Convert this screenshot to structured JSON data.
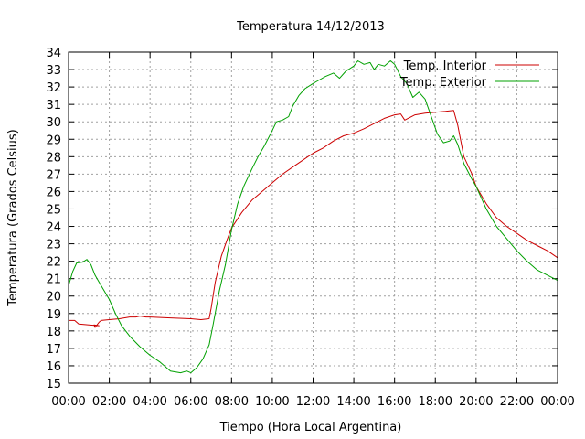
{
  "chart_data": {
    "type": "line",
    "title": "Temperatura 14/12/2013",
    "xlabel": "Tiempo (Hora Local Argentina)",
    "ylabel": "Temperatura (Grados Celsius)",
    "xlim_hours": [
      0,
      24
    ],
    "ylim": [
      15,
      34
    ],
    "x_ticks": [
      "00:00",
      "02:00",
      "04:00",
      "06:00",
      "08:00",
      "10:00",
      "12:00",
      "14:00",
      "16:00",
      "18:00",
      "20:00",
      "22:00",
      "00:00"
    ],
    "y_ticks": [
      15,
      16,
      17,
      18,
      19,
      20,
      21,
      22,
      23,
      24,
      25,
      26,
      27,
      28,
      29,
      30,
      31,
      32,
      33,
      34
    ],
    "grid": true,
    "legend_position": "top-right",
    "series": [
      {
        "name": "Temp. Interior",
        "color": "#cc0000",
        "points": [
          [
            0,
            18.6
          ],
          [
            0.3,
            18.6
          ],
          [
            0.5,
            18.4
          ],
          [
            1.0,
            18.35
          ],
          [
            1.5,
            18.3
          ],
          [
            1.25,
            18.35
          ],
          [
            1.3,
            18.2
          ],
          [
            1.5,
            18.5
          ],
          [
            1.6,
            18.6
          ],
          [
            2.0,
            18.65
          ],
          [
            2.5,
            18.7
          ],
          [
            3.0,
            18.8
          ],
          [
            3.3,
            18.8
          ],
          [
            3.5,
            18.85
          ],
          [
            3.8,
            18.8
          ],
          [
            4.0,
            18.8
          ],
          [
            5.0,
            18.75
          ],
          [
            6.0,
            18.7
          ],
          [
            6.5,
            18.65
          ],
          [
            6.9,
            18.7
          ],
          [
            7.0,
            19.3
          ],
          [
            7.2,
            20.8
          ],
          [
            7.5,
            22.3
          ],
          [
            7.8,
            23.3
          ],
          [
            8.0,
            23.9
          ],
          [
            8.5,
            24.8
          ],
          [
            9.0,
            25.5
          ],
          [
            9.5,
            26.0
          ],
          [
            10.0,
            26.5
          ],
          [
            10.5,
            27.0
          ],
          [
            11.0,
            27.4
          ],
          [
            11.5,
            27.8
          ],
          [
            12.0,
            28.2
          ],
          [
            12.5,
            28.5
          ],
          [
            13.0,
            28.9
          ],
          [
            13.5,
            29.2
          ],
          [
            14.0,
            29.35
          ],
          [
            14.5,
            29.6
          ],
          [
            15.0,
            29.9
          ],
          [
            15.5,
            30.2
          ],
          [
            16.0,
            30.4
          ],
          [
            16.3,
            30.45
          ],
          [
            16.5,
            30.1
          ],
          [
            17.0,
            30.4
          ],
          [
            17.5,
            30.5
          ],
          [
            18.0,
            30.55
          ],
          [
            18.5,
            30.6
          ],
          [
            18.9,
            30.65
          ],
          [
            19.1,
            29.8
          ],
          [
            19.4,
            28.0
          ],
          [
            19.8,
            27.0
          ],
          [
            20.0,
            26.3
          ],
          [
            20.5,
            25.3
          ],
          [
            21.0,
            24.5
          ],
          [
            21.5,
            24.0
          ],
          [
            22.0,
            23.6
          ],
          [
            22.5,
            23.2
          ],
          [
            23.0,
            22.9
          ],
          [
            23.5,
            22.6
          ],
          [
            24.0,
            22.2
          ]
        ]
      },
      {
        "name": "Temp. Exterior",
        "color": "#00a000",
        "points": [
          [
            0,
            20.6
          ],
          [
            0.2,
            21.4
          ],
          [
            0.4,
            21.9
          ],
          [
            0.7,
            21.95
          ],
          [
            0.9,
            22.1
          ],
          [
            1.1,
            21.8
          ],
          [
            1.3,
            21.2
          ],
          [
            1.5,
            20.8
          ],
          [
            1.7,
            20.4
          ],
          [
            2.0,
            19.8
          ],
          [
            2.3,
            19.0
          ],
          [
            2.6,
            18.3
          ],
          [
            3.0,
            17.7
          ],
          [
            3.5,
            17.1
          ],
          [
            4.0,
            16.6
          ],
          [
            4.5,
            16.2
          ],
          [
            5.0,
            15.7
          ],
          [
            5.5,
            15.6
          ],
          [
            5.8,
            15.7
          ],
          [
            6.0,
            15.6
          ],
          [
            6.3,
            15.9
          ],
          [
            6.6,
            16.4
          ],
          [
            6.9,
            17.2
          ],
          [
            7.1,
            18.4
          ],
          [
            7.4,
            20.3
          ],
          [
            7.7,
            21.8
          ],
          [
            8.0,
            23.8
          ],
          [
            8.3,
            25.3
          ],
          [
            8.6,
            26.3
          ],
          [
            9.0,
            27.3
          ],
          [
            9.3,
            28.0
          ],
          [
            9.6,
            28.6
          ],
          [
            10.0,
            29.5
          ],
          [
            10.2,
            30.0
          ],
          [
            10.5,
            30.1
          ],
          [
            10.8,
            30.3
          ],
          [
            11.0,
            30.9
          ],
          [
            11.3,
            31.5
          ],
          [
            11.6,
            31.9
          ],
          [
            12.0,
            32.2
          ],
          [
            12.3,
            32.4
          ],
          [
            12.6,
            32.6
          ],
          [
            13.0,
            32.8
          ],
          [
            13.3,
            32.5
          ],
          [
            13.6,
            32.9
          ],
          [
            14.0,
            33.2
          ],
          [
            14.2,
            33.5
          ],
          [
            14.5,
            33.3
          ],
          [
            14.8,
            33.4
          ],
          [
            15.0,
            33.0
          ],
          [
            15.2,
            33.3
          ],
          [
            15.5,
            33.2
          ],
          [
            15.8,
            33.5
          ],
          [
            16.0,
            33.3
          ],
          [
            16.3,
            32.6
          ],
          [
            16.6,
            32.2
          ],
          [
            16.9,
            31.4
          ],
          [
            17.2,
            31.7
          ],
          [
            17.5,
            31.3
          ],
          [
            17.8,
            30.3
          ],
          [
            18.1,
            29.3
          ],
          [
            18.4,
            28.8
          ],
          [
            18.7,
            28.9
          ],
          [
            18.9,
            29.2
          ],
          [
            19.1,
            28.7
          ],
          [
            19.4,
            27.6
          ],
          [
            19.8,
            26.7
          ],
          [
            20.0,
            26.3
          ],
          [
            20.5,
            25.0
          ],
          [
            21.0,
            24.0
          ],
          [
            21.5,
            23.3
          ],
          [
            22.0,
            22.6
          ],
          [
            22.5,
            22.0
          ],
          [
            23.0,
            21.5
          ],
          [
            23.5,
            21.2
          ],
          [
            24.0,
            20.9
          ]
        ]
      }
    ]
  }
}
